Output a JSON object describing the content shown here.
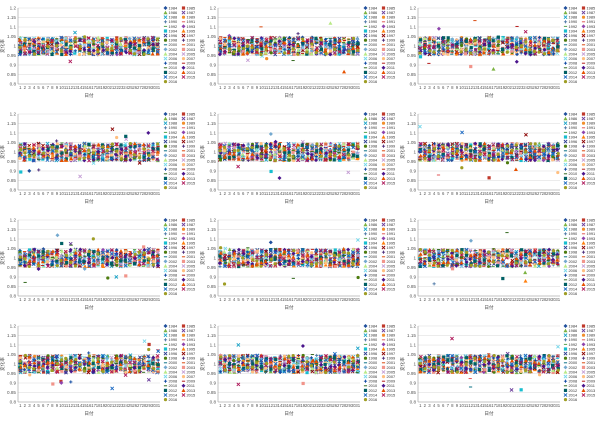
{
  "chart_data": {
    "type": "scatter",
    "layout": "4 rows x 3 columns of panels",
    "panel_count": 12,
    "x": [
      "1",
      "2",
      "3",
      "4",
      "5",
      "6",
      "7",
      "8",
      "9",
      "10",
      "11",
      "12",
      "13",
      "14",
      "15",
      "16",
      "17",
      "18",
      "19",
      "20",
      "21",
      "22",
      "23",
      "24",
      "25",
      "26",
      "27",
      "28",
      "29",
      "30",
      "31"
    ],
    "xlabel": "日付",
    "ylabel": "変化率",
    "ylim": [
      0.8,
      1.2
    ],
    "yticks": [
      "0.8",
      "0.85",
      "0.9",
      "0.95",
      "1",
      "1.05",
      "1.1",
      "1.15",
      "1.2"
    ],
    "grid": true,
    "legend_position": "right",
    "series": [
      {
        "name": "1984",
        "color": "#1f4e9c",
        "marker": "diamond"
      },
      {
        "name": "1985",
        "color": "#c0392b",
        "marker": "square"
      },
      {
        "name": "1986",
        "color": "#7cb342",
        "marker": "triangle"
      },
      {
        "name": "1987",
        "color": "#6a3d9a",
        "marker": "x"
      },
      {
        "name": "1988",
        "color": "#1aa3c7",
        "marker": "x"
      },
      {
        "name": "1989",
        "color": "#f28e2b",
        "marker": "circle"
      },
      {
        "name": "1990",
        "color": "#4e79a7",
        "marker": "plus"
      },
      {
        "name": "1991",
        "color": "#e15759",
        "marker": "dash"
      },
      {
        "name": "1992",
        "color": "#59a14f",
        "marker": "dash"
      },
      {
        "name": "1993",
        "color": "#8e44ad",
        "marker": "diamond"
      },
      {
        "name": "1994",
        "color": "#17becf",
        "marker": "square"
      },
      {
        "name": "1995",
        "color": "#ff7f0e",
        "marker": "triangle"
      },
      {
        "name": "1996",
        "color": "#2c3e90",
        "marker": "x"
      },
      {
        "name": "1997",
        "color": "#8b0000",
        "marker": "x"
      },
      {
        "name": "1998",
        "color": "#4d7c0f",
        "marker": "circle"
      },
      {
        "name": "1999",
        "color": "#4b2a7a",
        "marker": "plus"
      },
      {
        "name": "2000",
        "color": "#0b7285",
        "marker": "dash"
      },
      {
        "name": "2001",
        "color": "#d9480f",
        "marker": "dash"
      },
      {
        "name": "2002",
        "color": "#74a9cf",
        "marker": "diamond"
      },
      {
        "name": "2003",
        "color": "#f1948a",
        "marker": "square"
      },
      {
        "name": "2004",
        "color": "#b8e986",
        "marker": "triangle"
      },
      {
        "name": "2005",
        "color": "#c39bd3",
        "marker": "x"
      },
      {
        "name": "2006",
        "color": "#76d7ea",
        "marker": "x"
      },
      {
        "name": "2007",
        "color": "#ffbf80",
        "marker": "circle"
      },
      {
        "name": "2008",
        "color": "#0d47a1",
        "marker": "plus"
      },
      {
        "name": "2009",
        "color": "#b71c1c",
        "marker": "dash"
      },
      {
        "name": "2010",
        "color": "#33691e",
        "marker": "dash"
      },
      {
        "name": "2011",
        "color": "#4a148c",
        "marker": "diamond"
      },
      {
        "name": "2012",
        "color": "#006064",
        "marker": "square"
      },
      {
        "name": "2013",
        "color": "#e65100",
        "marker": "triangle"
      },
      {
        "name": "2014",
        "color": "#1565c0",
        "marker": "x"
      },
      {
        "name": "2015",
        "color": "#ad1457",
        "marker": "x"
      },
      {
        "name": "2016",
        "color": "#9e9d24",
        "marker": "circle"
      }
    ],
    "values_summary": "In every panel each year's points cluster near 0.95-1.05 for each day; a few outliers reach about 0.85-1.15 (e.g. the lower-left panel)."
  }
}
